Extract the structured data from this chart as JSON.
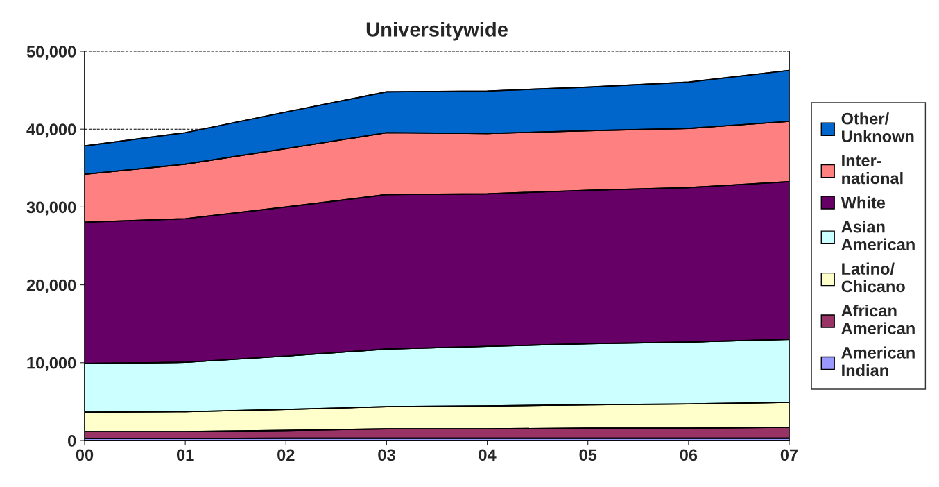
{
  "chart_data": {
    "type": "area",
    "stacked": true,
    "title": "Universitywide",
    "categories": [
      "00",
      "01",
      "02",
      "03",
      "04",
      "05",
      "06",
      "07"
    ],
    "series": [
      {
        "name": "American\nIndian",
        "color": "#9999ff",
        "values": [
          250,
          250,
          300,
          300,
          300,
          300,
          300,
          300
        ]
      },
      {
        "name": "African\nAmerican",
        "color": "#993366",
        "values": [
          900,
          900,
          1000,
          1200,
          1200,
          1300,
          1300,
          1400
        ]
      },
      {
        "name": "Latino/\nChicano",
        "color": "#ffffcc",
        "values": [
          2500,
          2550,
          2700,
          2850,
          2950,
          3000,
          3100,
          3200
        ]
      },
      {
        "name": "Asian\nAmerican",
        "color": "#ccffff",
        "values": [
          6250,
          6350,
          6850,
          7400,
          7650,
          7850,
          7950,
          8100
        ]
      },
      {
        "name": "White",
        "color": "#660066",
        "values": [
          18150,
          18450,
          19150,
          19850,
          19600,
          19700,
          19850,
          20250
        ]
      },
      {
        "name": "Inter-\nnational",
        "color": "#ff8080",
        "values": [
          6150,
          7000,
          7500,
          7950,
          7750,
          7650,
          7600,
          7750
        ]
      },
      {
        "name": "Other/\nUnknown",
        "color": "#0066cc",
        "values": [
          3650,
          4050,
          4700,
          5250,
          5450,
          5600,
          5950,
          6550
        ]
      }
    ],
    "ylim": [
      0,
      50000
    ],
    "yticks": [
      {
        "value": 0,
        "label": "0"
      },
      {
        "value": 10000,
        "label": "10,000"
      },
      {
        "value": 20000,
        "label": "20,000"
      },
      {
        "value": 30000,
        "label": "30,000"
      },
      {
        "value": 40000,
        "label": "40,000"
      },
      {
        "value": 50000,
        "label": "50,000"
      }
    ],
    "grid": "y",
    "legend": "right",
    "line_style": "dashed"
  }
}
